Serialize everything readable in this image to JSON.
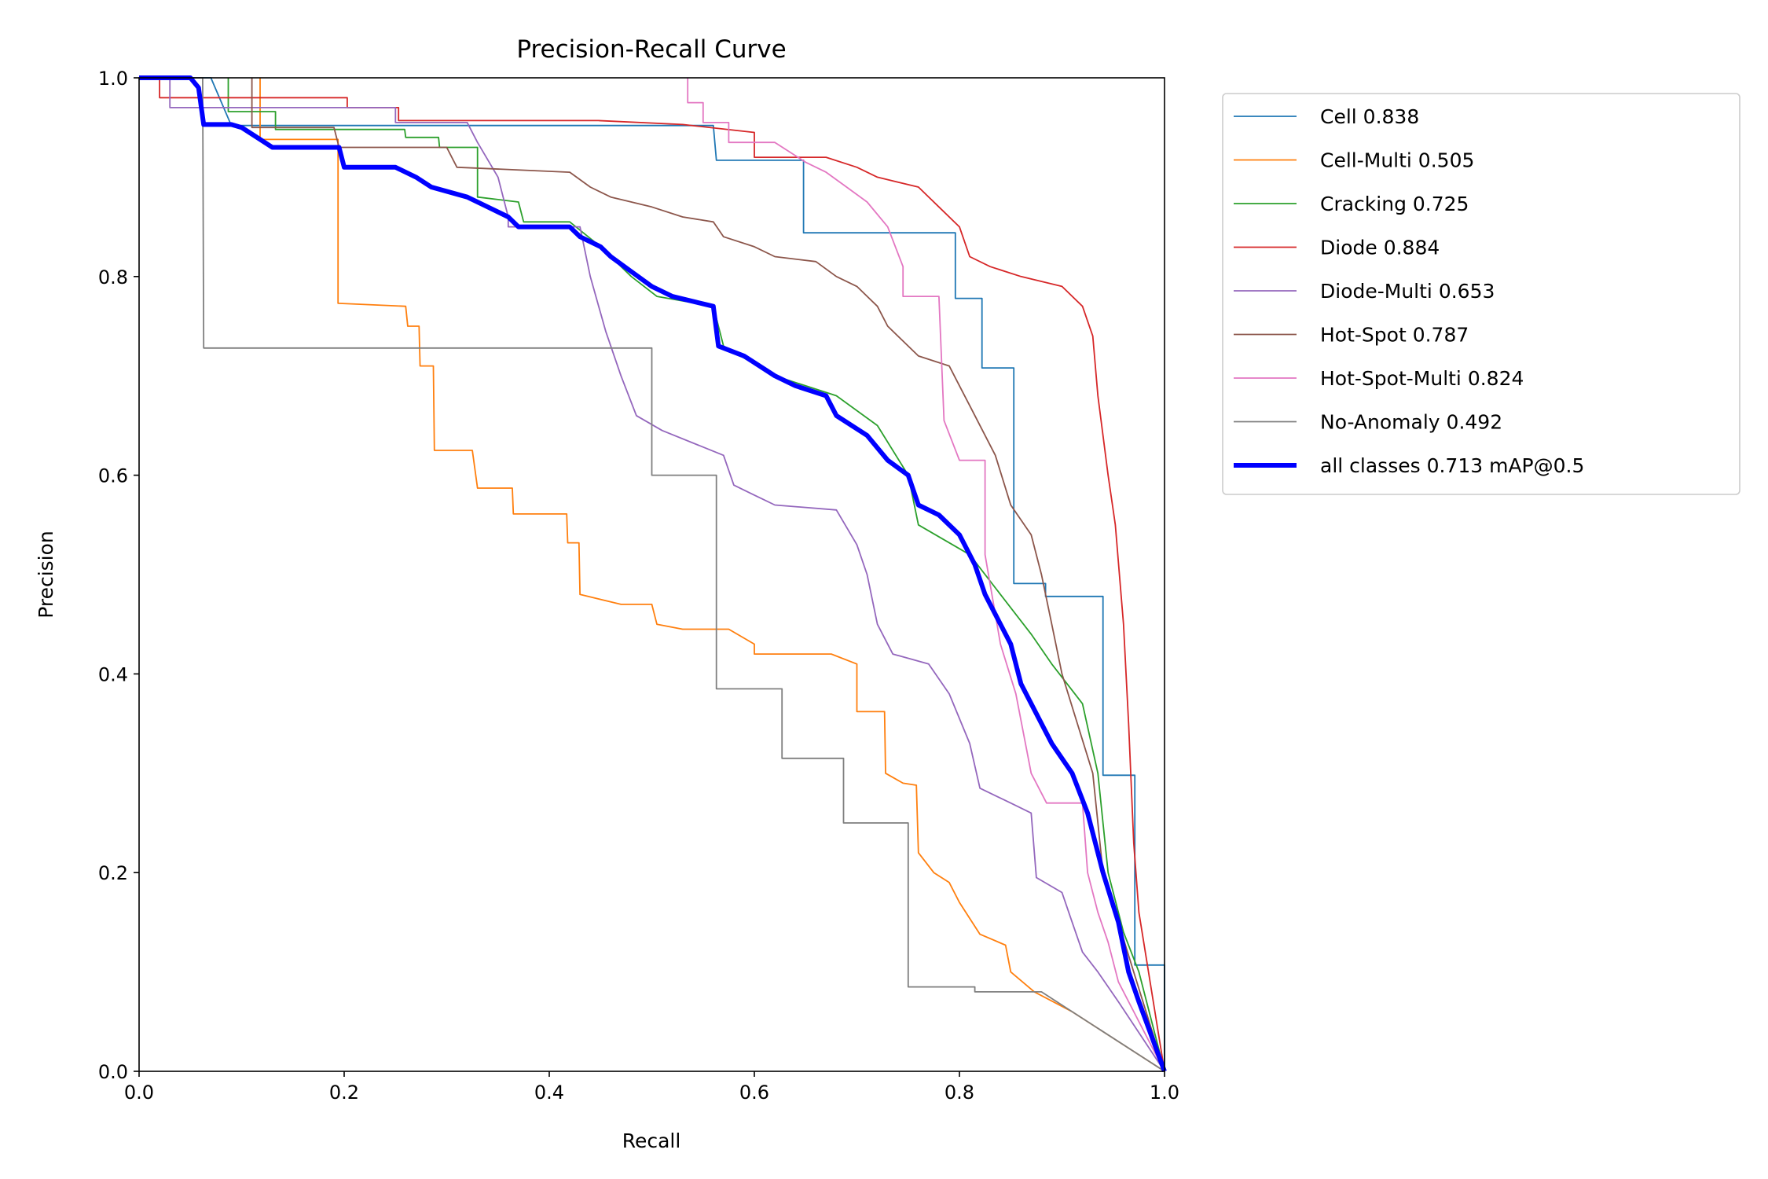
{
  "chart_data": {
    "type": "line",
    "title": "Precision-Recall Curve",
    "xlabel": "Recall",
    "ylabel": "Precision",
    "xlim": [
      0,
      1
    ],
    "ylim": [
      0,
      1
    ],
    "xticks": [
      "0.0",
      "0.2",
      "0.4",
      "0.6",
      "0.8",
      "1.0"
    ],
    "yticks": [
      "0.0",
      "0.2",
      "0.4",
      "0.6",
      "0.8",
      "1.0"
    ],
    "grid": false,
    "legend_position": "outside-top-right",
    "series": [
      {
        "name": "Cell 0.838",
        "color": "#1f77b4",
        "width": "thin",
        "points": [
          [
            0,
            1
          ],
          [
            0.07,
            1
          ],
          [
            0.09,
            0.952
          ],
          [
            0.56,
            0.952
          ],
          [
            0.563,
            0.917
          ],
          [
            0.648,
            0.917
          ],
          [
            0.648,
            0.844
          ],
          [
            0.796,
            0.844
          ],
          [
            0.796,
            0.778
          ],
          [
            0.822,
            0.778
          ],
          [
            0.822,
            0.708
          ],
          [
            0.853,
            0.708
          ],
          [
            0.853,
            0.491
          ],
          [
            0.884,
            0.491
          ],
          [
            0.884,
            0.478
          ],
          [
            0.94,
            0.478
          ],
          [
            0.94,
            0.298
          ],
          [
            0.971,
            0.298
          ],
          [
            0.971,
            0.107
          ],
          [
            1,
            0.107
          ],
          [
            1,
            0
          ]
        ]
      },
      {
        "name": "Cell-Multi 0.505",
        "color": "#ff7f0e",
        "width": "thin",
        "points": [
          [
            0.118,
            1
          ],
          [
            0.118,
            0.938
          ],
          [
            0.194,
            0.938
          ],
          [
            0.194,
            0.773
          ],
          [
            0.26,
            0.77
          ],
          [
            0.262,
            0.75
          ],
          [
            0.273,
            0.75
          ],
          [
            0.274,
            0.71
          ],
          [
            0.287,
            0.71
          ],
          [
            0.288,
            0.625
          ],
          [
            0.325,
            0.625
          ],
          [
            0.33,
            0.587
          ],
          [
            0.364,
            0.587
          ],
          [
            0.365,
            0.561
          ],
          [
            0.417,
            0.561
          ],
          [
            0.418,
            0.532
          ],
          [
            0.429,
            0.532
          ],
          [
            0.43,
            0.48
          ],
          [
            0.47,
            0.47
          ],
          [
            0.5,
            0.47
          ],
          [
            0.505,
            0.45
          ],
          [
            0.53,
            0.445
          ],
          [
            0.575,
            0.445
          ],
          [
            0.6,
            0.43
          ],
          [
            0.6,
            0.42
          ],
          [
            0.675,
            0.42
          ],
          [
            0.7,
            0.41
          ],
          [
            0.7,
            0.362
          ],
          [
            0.727,
            0.362
          ],
          [
            0.728,
            0.3
          ],
          [
            0.745,
            0.29
          ],
          [
            0.758,
            0.288
          ],
          [
            0.76,
            0.22
          ],
          [
            0.775,
            0.2
          ],
          [
            0.79,
            0.19
          ],
          [
            0.8,
            0.17
          ],
          [
            0.82,
            0.138
          ],
          [
            0.845,
            0.127
          ],
          [
            0.85,
            0.1
          ],
          [
            0.873,
            0.08
          ],
          [
            0.91,
            0.06
          ],
          [
            1,
            0
          ]
        ]
      },
      {
        "name": "Cracking 0.725",
        "color": "#2ca02c",
        "width": "thin",
        "points": [
          [
            0.087,
            1
          ],
          [
            0.087,
            0.966
          ],
          [
            0.133,
            0.966
          ],
          [
            0.133,
            0.948
          ],
          [
            0.259,
            0.948
          ],
          [
            0.26,
            0.94
          ],
          [
            0.292,
            0.94
          ],
          [
            0.293,
            0.93
          ],
          [
            0.33,
            0.93
          ],
          [
            0.33,
            0.88
          ],
          [
            0.37,
            0.875
          ],
          [
            0.375,
            0.855
          ],
          [
            0.42,
            0.855
          ],
          [
            0.45,
            0.83
          ],
          [
            0.48,
            0.8
          ],
          [
            0.505,
            0.78
          ],
          [
            0.56,
            0.77
          ],
          [
            0.57,
            0.73
          ],
          [
            0.62,
            0.7
          ],
          [
            0.68,
            0.68
          ],
          [
            0.72,
            0.65
          ],
          [
            0.75,
            0.6
          ],
          [
            0.76,
            0.55
          ],
          [
            0.81,
            0.52
          ],
          [
            0.84,
            0.48
          ],
          [
            0.87,
            0.44
          ],
          [
            0.89,
            0.41
          ],
          [
            0.92,
            0.37
          ],
          [
            0.935,
            0.3
          ],
          [
            0.945,
            0.2
          ],
          [
            0.96,
            0.14
          ],
          [
            0.975,
            0.1
          ],
          [
            1,
            0
          ]
        ]
      },
      {
        "name": "Diode 0.884",
        "color": "#d62728",
        "width": "thin",
        "points": [
          [
            0,
            1
          ],
          [
            0.02,
            1
          ],
          [
            0.02,
            0.98
          ],
          [
            0.203,
            0.98
          ],
          [
            0.203,
            0.97
          ],
          [
            0.253,
            0.97
          ],
          [
            0.253,
            0.957
          ],
          [
            0.448,
            0.957
          ],
          [
            0.53,
            0.953
          ],
          [
            0.6,
            0.945
          ],
          [
            0.6,
            0.92
          ],
          [
            0.67,
            0.92
          ],
          [
            0.7,
            0.91
          ],
          [
            0.72,
            0.9
          ],
          [
            0.76,
            0.89
          ],
          [
            0.78,
            0.87
          ],
          [
            0.8,
            0.85
          ],
          [
            0.81,
            0.82
          ],
          [
            0.83,
            0.81
          ],
          [
            0.86,
            0.8
          ],
          [
            0.9,
            0.79
          ],
          [
            0.92,
            0.77
          ],
          [
            0.93,
            0.74
          ],
          [
            0.935,
            0.68
          ],
          [
            0.945,
            0.6
          ],
          [
            0.952,
            0.55
          ],
          [
            0.96,
            0.45
          ],
          [
            0.965,
            0.35
          ],
          [
            0.97,
            0.23
          ],
          [
            0.975,
            0.16
          ],
          [
            1,
            0
          ]
        ]
      },
      {
        "name": "Diode-Multi 0.653",
        "color": "#9467bd",
        "width": "thin",
        "points": [
          [
            0,
            1
          ],
          [
            0.03,
            1
          ],
          [
            0.03,
            0.97
          ],
          [
            0.25,
            0.97
          ],
          [
            0.25,
            0.955
          ],
          [
            0.32,
            0.955
          ],
          [
            0.33,
            0.935
          ],
          [
            0.35,
            0.9
          ],
          [
            0.36,
            0.86
          ],
          [
            0.36,
            0.85
          ],
          [
            0.43,
            0.85
          ],
          [
            0.44,
            0.8
          ],
          [
            0.455,
            0.745
          ],
          [
            0.47,
            0.7
          ],
          [
            0.485,
            0.66
          ],
          [
            0.51,
            0.645
          ],
          [
            0.57,
            0.62
          ],
          [
            0.58,
            0.59
          ],
          [
            0.6,
            0.58
          ],
          [
            0.62,
            0.57
          ],
          [
            0.68,
            0.565
          ],
          [
            0.7,
            0.53
          ],
          [
            0.71,
            0.5
          ],
          [
            0.72,
            0.45
          ],
          [
            0.735,
            0.42
          ],
          [
            0.77,
            0.41
          ],
          [
            0.79,
            0.38
          ],
          [
            0.81,
            0.33
          ],
          [
            0.82,
            0.285
          ],
          [
            0.85,
            0.27
          ],
          [
            0.87,
            0.26
          ],
          [
            0.875,
            0.195
          ],
          [
            0.9,
            0.18
          ],
          [
            0.91,
            0.15
          ],
          [
            0.92,
            0.12
          ],
          [
            0.935,
            0.1
          ],
          [
            0.955,
            0.07
          ],
          [
            1,
            0
          ]
        ]
      },
      {
        "name": "Hot-Spot 0.787",
        "color": "#8c564b",
        "width": "thin",
        "points": [
          [
            0.11,
            1
          ],
          [
            0.11,
            0.95
          ],
          [
            0.19,
            0.95
          ],
          [
            0.195,
            0.93
          ],
          [
            0.3,
            0.93
          ],
          [
            0.31,
            0.91
          ],
          [
            0.42,
            0.905
          ],
          [
            0.44,
            0.89
          ],
          [
            0.46,
            0.88
          ],
          [
            0.5,
            0.87
          ],
          [
            0.53,
            0.86
          ],
          [
            0.56,
            0.855
          ],
          [
            0.57,
            0.84
          ],
          [
            0.6,
            0.83
          ],
          [
            0.62,
            0.82
          ],
          [
            0.66,
            0.815
          ],
          [
            0.68,
            0.8
          ],
          [
            0.7,
            0.79
          ],
          [
            0.72,
            0.77
          ],
          [
            0.73,
            0.75
          ],
          [
            0.76,
            0.72
          ],
          [
            0.79,
            0.71
          ],
          [
            0.8,
            0.69
          ],
          [
            0.81,
            0.67
          ],
          [
            0.835,
            0.62
          ],
          [
            0.85,
            0.57
          ],
          [
            0.87,
            0.54
          ],
          [
            0.88,
            0.5
          ],
          [
            0.89,
            0.45
          ],
          [
            0.9,
            0.4
          ],
          [
            0.915,
            0.35
          ],
          [
            0.93,
            0.3
          ],
          [
            0.94,
            0.2
          ],
          [
            0.97,
            0.1
          ],
          [
            1,
            0
          ]
        ]
      },
      {
        "name": "Hot-Spot-Multi 0.824",
        "color": "#e377c2",
        "width": "thin",
        "points": [
          [
            0.535,
            1
          ],
          [
            0.535,
            0.975
          ],
          [
            0.55,
            0.975
          ],
          [
            0.55,
            0.955
          ],
          [
            0.575,
            0.955
          ],
          [
            0.575,
            0.935
          ],
          [
            0.62,
            0.935
          ],
          [
            0.65,
            0.915
          ],
          [
            0.67,
            0.905
          ],
          [
            0.69,
            0.89
          ],
          [
            0.71,
            0.875
          ],
          [
            0.73,
            0.85
          ],
          [
            0.745,
            0.81
          ],
          [
            0.745,
            0.78
          ],
          [
            0.78,
            0.78
          ],
          [
            0.785,
            0.655
          ],
          [
            0.8,
            0.615
          ],
          [
            0.825,
            0.615
          ],
          [
            0.825,
            0.52
          ],
          [
            0.84,
            0.43
          ],
          [
            0.855,
            0.38
          ],
          [
            0.87,
            0.3
          ],
          [
            0.885,
            0.27
          ],
          [
            0.92,
            0.27
          ],
          [
            0.925,
            0.2
          ],
          [
            0.935,
            0.16
          ],
          [
            0.945,
            0.13
          ],
          [
            0.955,
            0.09
          ],
          [
            1,
            0
          ]
        ]
      },
      {
        "name": "No-Anomaly 0.492",
        "color": "#7f7f7f",
        "width": "thin",
        "points": [
          [
            0,
            1
          ],
          [
            0.062,
            1
          ],
          [
            0.063,
            0.728
          ],
          [
            0.5,
            0.728
          ],
          [
            0.5,
            0.6
          ],
          [
            0.563,
            0.6
          ],
          [
            0.563,
            0.385
          ],
          [
            0.627,
            0.385
          ],
          [
            0.627,
            0.315
          ],
          [
            0.687,
            0.315
          ],
          [
            0.687,
            0.25
          ],
          [
            0.75,
            0.25
          ],
          [
            0.75,
            0.085
          ],
          [
            0.815,
            0.085
          ],
          [
            0.815,
            0.08
          ],
          [
            0.88,
            0.08
          ],
          [
            1,
            0
          ]
        ]
      },
      {
        "name": "all classes 0.713 mAP@0.5",
        "color": "#0000ff",
        "width": "thick",
        "points": [
          [
            0,
            1
          ],
          [
            0.05,
            1
          ],
          [
            0.058,
            0.99
          ],
          [
            0.063,
            0.953
          ],
          [
            0.09,
            0.953
          ],
          [
            0.1,
            0.95
          ],
          [
            0.115,
            0.94
          ],
          [
            0.13,
            0.93
          ],
          [
            0.195,
            0.93
          ],
          [
            0.2,
            0.91
          ],
          [
            0.25,
            0.91
          ],
          [
            0.27,
            0.9
          ],
          [
            0.285,
            0.89
          ],
          [
            0.32,
            0.88
          ],
          [
            0.34,
            0.87
          ],
          [
            0.36,
            0.86
          ],
          [
            0.37,
            0.85
          ],
          [
            0.42,
            0.85
          ],
          [
            0.43,
            0.84
          ],
          [
            0.45,
            0.83
          ],
          [
            0.46,
            0.82
          ],
          [
            0.48,
            0.805
          ],
          [
            0.5,
            0.79
          ],
          [
            0.52,
            0.78
          ],
          [
            0.56,
            0.77
          ],
          [
            0.565,
            0.73
          ],
          [
            0.59,
            0.72
          ],
          [
            0.62,
            0.7
          ],
          [
            0.64,
            0.69
          ],
          [
            0.67,
            0.68
          ],
          [
            0.68,
            0.66
          ],
          [
            0.71,
            0.64
          ],
          [
            0.73,
            0.615
          ],
          [
            0.75,
            0.6
          ],
          [
            0.76,
            0.57
          ],
          [
            0.78,
            0.56
          ],
          [
            0.8,
            0.54
          ],
          [
            0.815,
            0.51
          ],
          [
            0.825,
            0.48
          ],
          [
            0.835,
            0.46
          ],
          [
            0.85,
            0.43
          ],
          [
            0.86,
            0.39
          ],
          [
            0.875,
            0.36
          ],
          [
            0.89,
            0.33
          ],
          [
            0.91,
            0.3
          ],
          [
            0.925,
            0.26
          ],
          [
            0.94,
            0.2
          ],
          [
            0.955,
            0.15
          ],
          [
            0.965,
            0.1
          ],
          [
            0.975,
            0.07
          ],
          [
            1,
            0
          ]
        ]
      }
    ]
  }
}
